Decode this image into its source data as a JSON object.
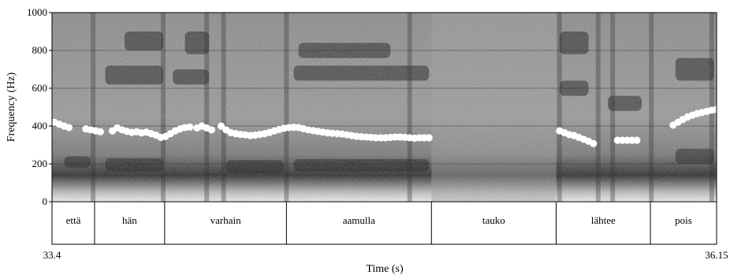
{
  "chart_data": {
    "type": "spectrogram",
    "xlabel": "Time (s)",
    "ylabel": "Frequency (Hz)",
    "xlim": [
      33.4,
      36.15
    ],
    "ylim": [
      0,
      1000
    ],
    "x_tick_labels": [
      "33.4",
      "36.15"
    ],
    "y_ticks": [
      0,
      200,
      400,
      600,
      800,
      1000
    ],
    "y_tick_labels": [
      "0",
      "200",
      "400",
      "600",
      "800",
      "1000"
    ],
    "grid": true,
    "colors": {
      "pitch": "#ffffff",
      "background_dark": "#1a1a1a",
      "background_light": "#bdbdbd"
    },
    "segments": [
      {
        "label": "että",
        "start": 33.4,
        "end": 33.576
      },
      {
        "label": "hän",
        "start": 33.576,
        "end": 33.866
      },
      {
        "label": "varhain",
        "start": 33.866,
        "end": 34.37
      },
      {
        "label": "aamulla",
        "start": 34.37,
        "end": 34.97
      },
      {
        "label": "tauko",
        "start": 34.97,
        "end": 35.486
      },
      {
        "label": "lähtee",
        "start": 35.486,
        "end": 35.876
      },
      {
        "label": "pois",
        "start": 35.876,
        "end": 36.15
      }
    ],
    "pitch_series": [
      {
        "x": [
          33.41,
          33.43,
          33.45,
          33.47
        ],
        "y": [
          420,
          410,
          400,
          392
        ]
      },
      {
        "x": [
          33.54,
          33.56,
          33.58,
          33.6
        ],
        "y": [
          385,
          380,
          375,
          370
        ]
      },
      {
        "x": [
          33.65,
          33.67,
          33.69,
          33.71,
          33.73,
          33.75,
          33.77,
          33.79,
          33.81,
          33.83,
          33.85,
          33.87,
          33.89,
          33.91,
          33.93,
          33.95,
          33.97,
          34.0
        ],
        "y": [
          375,
          390,
          380,
          372,
          366,
          370,
          364,
          368,
          360,
          352,
          340,
          345,
          360,
          375,
          385,
          392,
          395,
          390
        ]
      },
      {
        "x": [
          34.02,
          34.04,
          34.06
        ],
        "y": [
          400,
          390,
          380
        ]
      },
      {
        "x": [
          34.1,
          34.12,
          34.14,
          34.16,
          34.18,
          34.2,
          34.22,
          34.24,
          34.26,
          34.28,
          34.3,
          34.32,
          34.34,
          34.36,
          34.38,
          34.4,
          34.42,
          34.44,
          34.46,
          34.48,
          34.5,
          34.52,
          34.54,
          34.56,
          34.58,
          34.6,
          34.62,
          34.64,
          34.66,
          34.68,
          34.7,
          34.72,
          34.74,
          34.76,
          34.78,
          34.8,
          34.82,
          34.84,
          34.86,
          34.88,
          34.9,
          34.92,
          34.94,
          34.96
        ],
        "y": [
          400,
          380,
          365,
          360,
          356,
          354,
          350,
          352,
          356,
          360,
          366,
          375,
          382,
          388,
          392,
          394,
          392,
          386,
          380,
          376,
          372,
          368,
          364,
          362,
          360,
          358,
          354,
          350,
          346,
          344,
          342,
          340,
          338,
          338,
          338,
          340,
          342,
          342,
          340,
          338,
          336,
          338,
          338,
          338
        ]
      },
      {
        "x": [
          35.5,
          35.52,
          35.54,
          35.56,
          35.58,
          35.6,
          35.62,
          35.64
        ],
        "y": [
          375,
          365,
          355,
          350,
          340,
          330,
          320,
          308
        ]
      },
      {
        "x": [
          35.74,
          35.76,
          35.78,
          35.8,
          35.82
        ],
        "y": [
          325,
          325,
          325,
          325,
          325
        ]
      },
      {
        "x": [
          35.97,
          35.99,
          36.01,
          36.03,
          36.05,
          36.07,
          36.09,
          36.11,
          36.13,
          36.15,
          36.17,
          36.19,
          36.21,
          36.23,
          36.25,
          36.27,
          36.29,
          36.31,
          36.33,
          36.35
        ],
        "y": [
          405,
          420,
          435,
          448,
          458,
          466,
          472,
          478,
          484,
          488,
          492,
          496,
          500,
          503,
          506,
          510,
          512,
          514,
          510,
          505
        ]
      }
    ]
  }
}
